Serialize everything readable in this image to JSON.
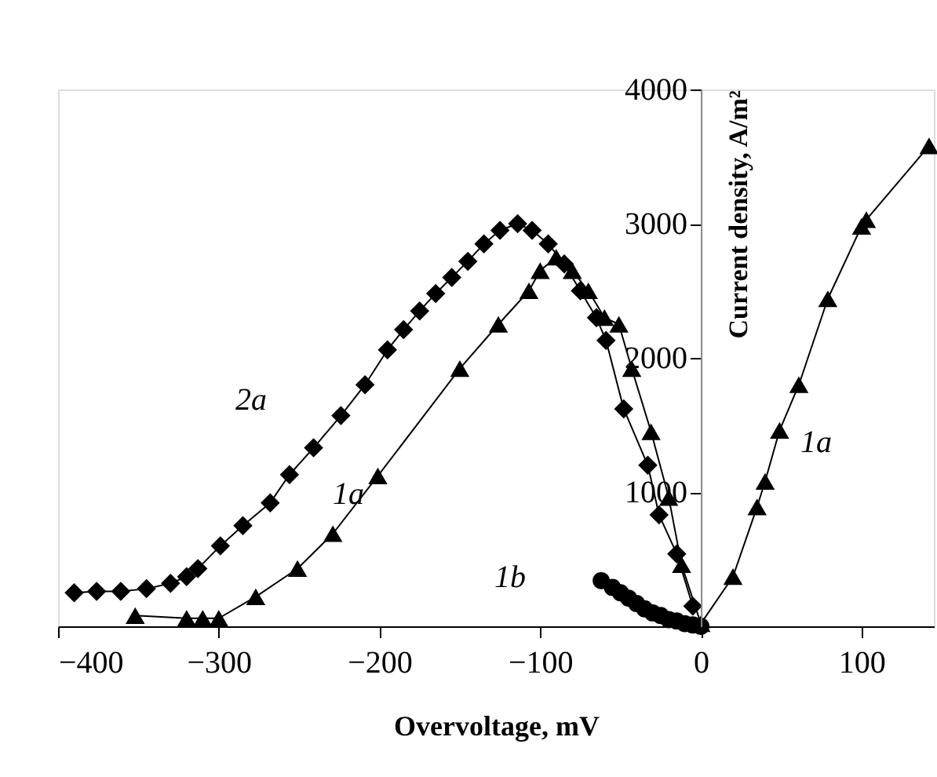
{
  "chart_data": {
    "type": "line",
    "xlabel": "Overvoltage, mV",
    "ylabel": "Current density, A/m²",
    "xlim": [
      -400,
      145
    ],
    "ylim": [
      0,
      4000
    ],
    "xticks": [
      -400,
      -300,
      -200,
      -100,
      0,
      100
    ],
    "yticks": [
      {
        "value": 0,
        "label": null
      },
      1000,
      2000,
      3000,
      4000
    ],
    "grid": false,
    "line_style": "solid",
    "series": [
      {
        "marker": "triangle",
        "color": "#000000",
        "x": [
          -352,
          -320,
          -310,
          -300,
          -277,
          -251,
          -229,
          -201,
          -150,
          -126,
          -107,
          -100,
          -90,
          -80,
          -70,
          -60,
          -51,
          -43,
          -31,
          -20,
          -12,
          0,
          20,
          35,
          40,
          49,
          61,
          79,
          100,
          103,
          142
        ],
        "values": [
          80,
          60,
          60,
          60,
          220,
          430,
          690,
          1120,
          1920,
          2250,
          2500,
          2650,
          2750,
          2650,
          2500,
          2300,
          2250,
          1920,
          1450,
          960,
          460,
          20,
          370,
          890,
          1080,
          1460,
          1800,
          2440,
          2980,
          3030,
          3580
        ]
      },
      {
        "marker": "diamond",
        "color": "#000000",
        "x": [
          -390,
          -376,
          -361,
          -345,
          -330,
          -320,
          -313,
          -299,
          -285,
          -268,
          -256,
          -241,
          -224,
          -209,
          -195,
          -185,
          -175,
          -165,
          -155,
          -145,
          -135,
          -125,
          -114,
          -105,
          -95,
          -85,
          -75,
          -65,
          -59,
          -48,
          -33,
          -26,
          -15,
          -5
        ],
        "values": [
          250,
          260,
          260,
          280,
          320,
          370,
          430,
          600,
          750,
          920,
          1130,
          1330,
          1570,
          1800,
          2060,
          2210,
          2350,
          2480,
          2600,
          2720,
          2850,
          2950,
          3000,
          2950,
          2850,
          2700,
          2500,
          2300,
          2130,
          1620,
          1200,
          830,
          540,
          150
        ]
      },
      {
        "type": "scatter",
        "marker": "circle",
        "color": "#000000",
        "x": [
          -62,
          -55,
          -50,
          -45,
          -40,
          -35,
          -30,
          -25,
          -20,
          -15,
          -10,
          -5,
          0
        ],
        "values": [
          340,
          290,
          250,
          210,
          170,
          130,
          100,
          80,
          50,
          40,
          20,
          10,
          0
        ]
      }
    ],
    "annotations": [
      "2a",
      "1a",
      "1b",
      "1a"
    ]
  }
}
